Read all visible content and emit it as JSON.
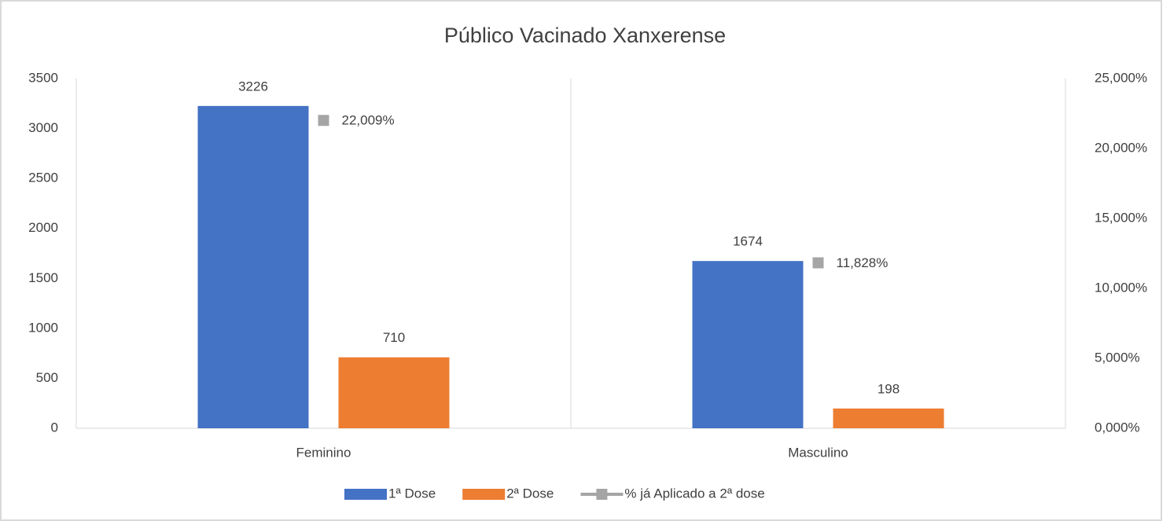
{
  "chart_data": {
    "type": "bar",
    "title": "Público Vacinado Xanxerense",
    "categories": [
      "Feminino",
      "Masculino"
    ],
    "series": [
      {
        "name": "1ª Dose",
        "color": "#4472c4",
        "values": [
          3226,
          1674
        ]
      },
      {
        "name": "2ª Dose",
        "color": "#ed7d31",
        "values": [
          710,
          198
        ]
      },
      {
        "name": "% já Aplicado a 2ª dose",
        "color": "#a5a5a5",
        "axis": "y2",
        "values": [
          22.009,
          11.828
        ],
        "value_labels": [
          "22,009%",
          "11,828%"
        ]
      }
    ],
    "ylim": [
      0,
      3500
    ],
    "yticks": [
      0,
      500,
      1000,
      1500,
      2000,
      2500,
      3000,
      3500
    ],
    "y2lim": [
      0,
      25
    ],
    "y2ticks": [
      {
        "value": 0,
        "label": "0,000%"
      },
      {
        "value": 5,
        "label": "5,000%"
      },
      {
        "value": 10,
        "label": "10,000%"
      },
      {
        "value": 15,
        "label": "15,000%"
      },
      {
        "value": 20,
        "label": "20,000%"
      },
      {
        "value": 25,
        "label": "25,000%"
      }
    ],
    "legend": "bottom"
  }
}
